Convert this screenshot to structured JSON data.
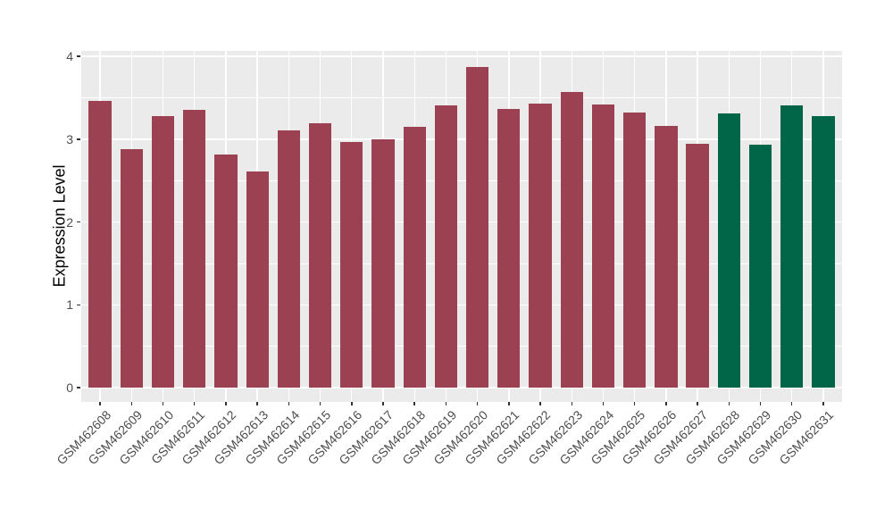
{
  "chart_data": {
    "type": "bar",
    "title": "",
    "xlabel": "",
    "ylabel": "Expression Level",
    "ylim": [
      0,
      4.07
    ],
    "yticks": [
      0,
      1,
      2,
      3,
      4
    ],
    "minor_ticks": [
      0.5,
      1.5,
      2.5,
      3.5
    ],
    "grid": "major and minor white gridlines on gray panel",
    "legend_position": "none",
    "panel_background": "#EBEBEB",
    "gridline_color": "#FFFFFF",
    "axis_text_color": "#4D4D4D",
    "categories": [
      "GSM462608",
      "GSM462609",
      "GSM462610",
      "GSM462611",
      "GSM462612",
      "GSM462613",
      "GSM462614",
      "GSM462615",
      "GSM462616",
      "GSM462617",
      "GSM462618",
      "GSM462619",
      "GSM462620",
      "GSM462621",
      "GSM462622",
      "GSM462623",
      "GSM462624",
      "GSM462625",
      "GSM462626",
      "GSM462627",
      "GSM462628",
      "GSM462629",
      "GSM462630",
      "GSM462631"
    ],
    "values": [
      3.46,
      2.88,
      3.28,
      3.35,
      2.82,
      2.61,
      3.11,
      3.19,
      2.97,
      3.0,
      3.15,
      3.41,
      3.87,
      3.37,
      3.43,
      3.57,
      3.42,
      3.32,
      3.16,
      2.94,
      3.31,
      2.93,
      3.41,
      3.28
    ],
    "bar_colors": [
      "#9B4151",
      "#9B4151",
      "#9B4151",
      "#9B4151",
      "#9B4151",
      "#9B4151",
      "#9B4151",
      "#9B4151",
      "#9B4151",
      "#9B4151",
      "#9B4151",
      "#9B4151",
      "#9B4151",
      "#9B4151",
      "#9B4151",
      "#9B4151",
      "#9B4151",
      "#9B4151",
      "#9B4151",
      "#9B4151",
      "#006647",
      "#006647",
      "#006647",
      "#006647"
    ],
    "color_groups": {
      "maroon": "#9B4151",
      "green": "#006647"
    }
  }
}
